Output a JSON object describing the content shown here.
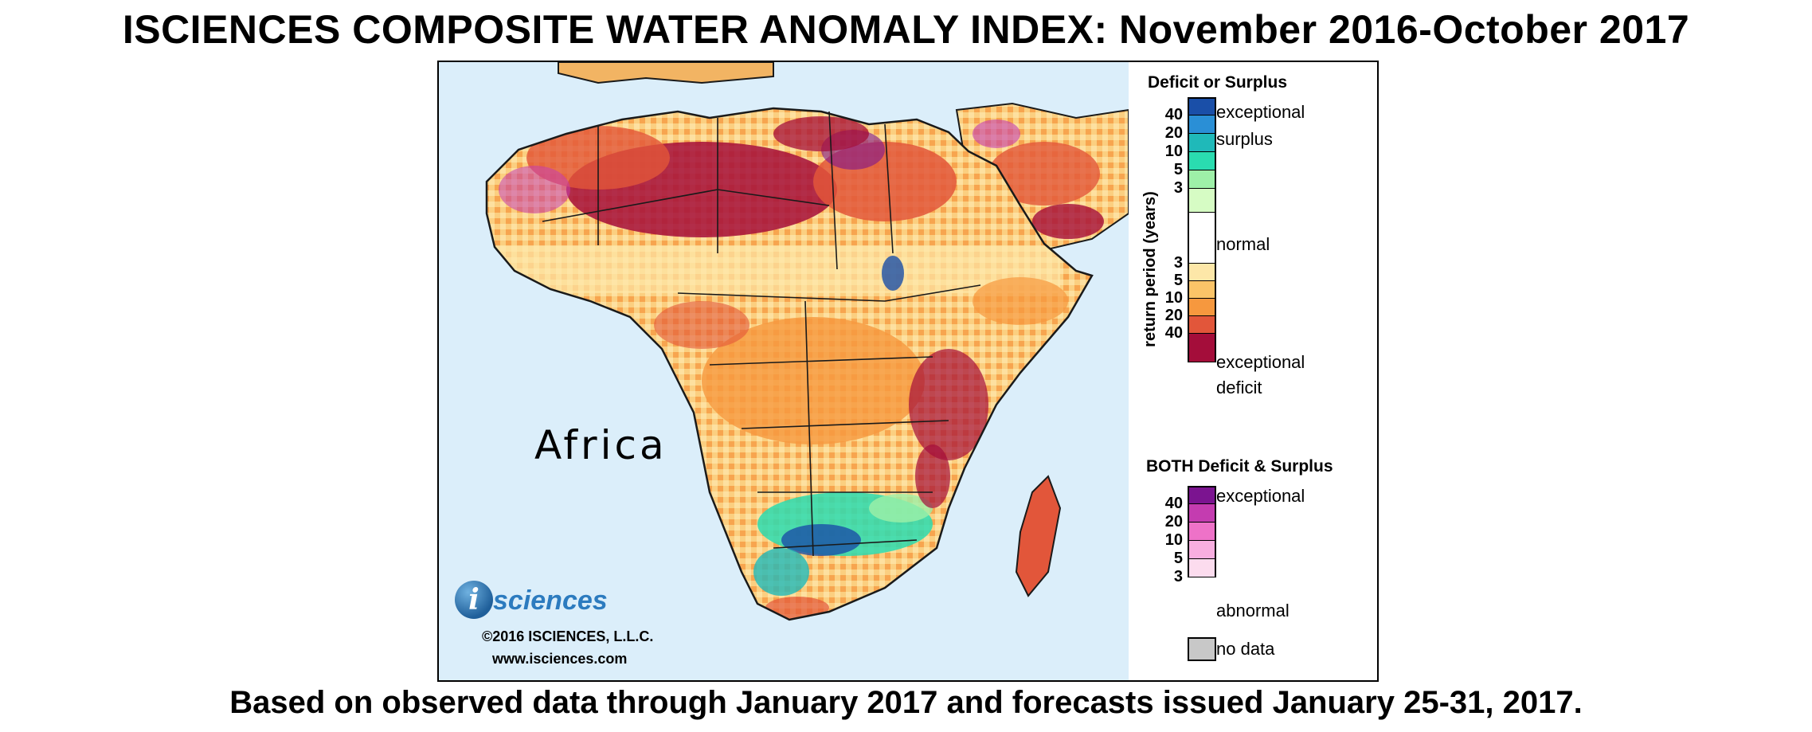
{
  "header": {
    "title": "ISCIENCES COMPOSITE WATER ANOMALY INDEX: November 2016-October 2017",
    "subtitle": "Based on observed data through January 2017 and forecasts issued January 25-31, 2017."
  },
  "map": {
    "region_label": "Africa",
    "colors": {
      "ocean": "#dbeefa",
      "land_base": "#fde0a0",
      "border": "#1a1a1a"
    }
  },
  "logo": {
    "badge": "i",
    "wordmark": "sciences",
    "copyright": "©2016 ISCIENCES, L.L.C.",
    "url": "www.isciences.com"
  },
  "legend": {
    "deficit_surplus": {
      "title": "Deficit or Surplus",
      "axis_label": "return period (years)",
      "surplus_colors": [
        "#1a4fa8",
        "#2a8fd6",
        "#1fb9b9",
        "#2adcb0",
        "#9ef0a8",
        "#d6fcc4"
      ],
      "normal_color": "#ffffff",
      "deficit_colors": [
        "#fde7a8",
        "#fbc468",
        "#f6983e",
        "#e2563a",
        "#a40d3a"
      ],
      "surplus_ticks": [
        "40",
        "20",
        "10",
        "5",
        "3"
      ],
      "deficit_ticks": [
        "3",
        "5",
        "10",
        "20",
        "40"
      ],
      "label_exceptional_surplus_1": "exceptional",
      "label_exceptional_surplus_2": "surplus",
      "label_normal": "normal",
      "label_exceptional_deficit_1": "exceptional",
      "label_exceptional_deficit_2": "deficit"
    },
    "both": {
      "title": "BOTH Deficit & Surplus",
      "colors": [
        "#7b1490",
        "#c43cb0",
        "#ee72c8",
        "#f8aee0",
        "#fcdcee"
      ],
      "ticks": [
        "40",
        "20",
        "10",
        "5",
        "3"
      ],
      "label_top": "exceptional",
      "label_bottom": "abnormal"
    },
    "no_data": {
      "label": "no data",
      "color": "#c8c8c8"
    }
  }
}
